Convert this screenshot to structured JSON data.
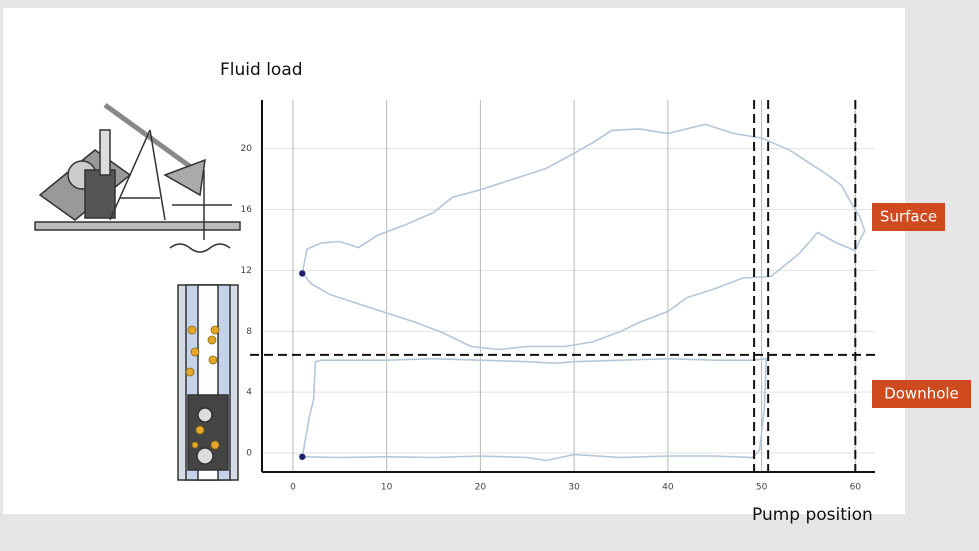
{
  "chart_data": {
    "type": "line",
    "y_label": "Fluid load",
    "x_label": "Pump position",
    "xlim": [
      -3.3,
      62.1
    ],
    "ylim": [
      -1.25,
      23.2
    ],
    "xticks": [
      0,
      10,
      20,
      30,
      40,
      50,
      60
    ],
    "yticks": [
      0,
      4,
      8,
      12,
      16,
      20
    ],
    "grid": true,
    "series": [
      {
        "name": "Surface",
        "color": "#b4c6d8",
        "x": [
          1,
          1.5,
          3,
          5,
          7,
          9,
          12,
          15,
          17,
          20,
          23,
          27,
          30,
          32,
          34,
          37,
          40,
          42,
          44,
          47,
          50,
          53,
          55,
          57,
          58.5,
          59.5,
          60.5,
          61,
          60.5,
          60,
          58,
          56,
          54,
          51,
          48,
          45,
          42,
          40,
          37,
          35,
          32,
          29,
          25,
          22,
          19,
          16,
          13,
          10,
          7,
          4,
          2,
          1
        ],
        "values": [
          11.8,
          13.4,
          13.8,
          13.9,
          13.5,
          14.3,
          15.0,
          15.8,
          16.8,
          17.3,
          17.9,
          18.7,
          19.7,
          20.4,
          21.2,
          21.3,
          21.0,
          21.3,
          21.6,
          21.0,
          20.7,
          19.9,
          19.1,
          18.3,
          17.6,
          16.5,
          15.5,
          14.6,
          14.0,
          13.3,
          13.8,
          14.5,
          13.1,
          11.6,
          11.5,
          10.8,
          10.2,
          9.3,
          8.6,
          8.0,
          7.3,
          7.0,
          7.0,
          6.8,
          7.0,
          7.9,
          8.6,
          9.2,
          9.8,
          10.4,
          11.1,
          11.8
        ]
      },
      {
        "name": "Downhole",
        "color": "#b4c6d8",
        "x": [
          1,
          1.8,
          2.2,
          2.4,
          3,
          10,
          15,
          20,
          25,
          28,
          30,
          35,
          40,
          45,
          49,
          50.5,
          50.3,
          49.8,
          49,
          45,
          40,
          35,
          30,
          27,
          25,
          20,
          15,
          10,
          5,
          1
        ],
        "values": [
          -0.25,
          2.5,
          3.5,
          6.0,
          6.1,
          6.1,
          6.2,
          6.1,
          6.0,
          5.9,
          6.0,
          6.1,
          6.2,
          6.1,
          6.1,
          6.2,
          3.0,
          0.2,
          -0.3,
          -0.2,
          -0.2,
          -0.3,
          -0.1,
          -0.5,
          -0.3,
          -0.2,
          -0.3,
          -0.25,
          -0.3,
          -0.25
        ]
      }
    ],
    "markers": {
      "color": "#1f1f6e",
      "x": [
        1,
        1
      ],
      "values": [
        11.8,
        -0.25
      ]
    },
    "dashed_vlines": [
      49.2,
      50.7,
      60
    ],
    "dashed_hlines": [
      6.45
    ]
  }
}
